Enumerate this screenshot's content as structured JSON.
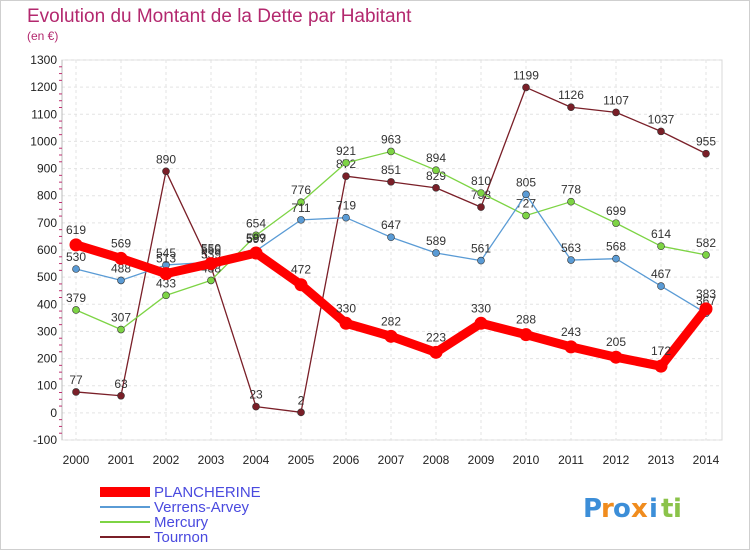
{
  "chart_data": {
    "type": "line",
    "title": "Evolution du Montant de la Dette par Habitant",
    "subtitle": "(en €)",
    "xlabel": "",
    "ylabel": "",
    "categories": [
      "2000",
      "2001",
      "2002",
      "2003",
      "2004",
      "2005",
      "2006",
      "2007",
      "2008",
      "2009",
      "2010",
      "2011",
      "2012",
      "2013",
      "2014"
    ],
    "ylim": [
      -100,
      1300
    ],
    "yticks": [
      "-100",
      "0",
      "100",
      "200",
      "300",
      "400",
      "500",
      "600",
      "700",
      "800",
      "900",
      "1000",
      "1100",
      "1200",
      "1300"
    ],
    "grid": true,
    "legend_position": "bottom-left",
    "series": [
      {
        "name": "PLANCHERINE",
        "color": "#ff0000",
        "values": [
          619,
          569,
          513,
          550,
          589,
          472,
          330,
          282,
          223,
          330,
          288,
          243,
          205,
          172,
          383
        ]
      },
      {
        "name": "Verrens-Arvey",
        "color": "#5a9bd5",
        "values": [
          530,
          488,
          545,
          555,
          597,
          711,
          719,
          647,
          589,
          561,
          805,
          563,
          568,
          467,
          367
        ]
      },
      {
        "name": "Mercury",
        "color": "#7dd444",
        "values": [
          379,
          307,
          433,
          488,
          654,
          776,
          921,
          963,
          894,
          810,
          727,
          778,
          699,
          614,
          582
        ]
      },
      {
        "name": "Tournon",
        "color": "#7a1f28",
        "values": [
          77,
          63,
          890,
          539,
          23,
          2,
          872,
          851,
          829,
          758,
          1199,
          1126,
          1107,
          1037,
          955
        ]
      }
    ]
  },
  "brand": {
    "letters": [
      "P",
      "r",
      "o",
      "x",
      "i",
      "t",
      "i"
    ],
    "colors": [
      "#3c8ed8",
      "#f08c1e",
      "#3c8ed8",
      "#f08c1e",
      "#3c8ed8",
      "#8bc34a",
      "#8bc34a"
    ]
  }
}
